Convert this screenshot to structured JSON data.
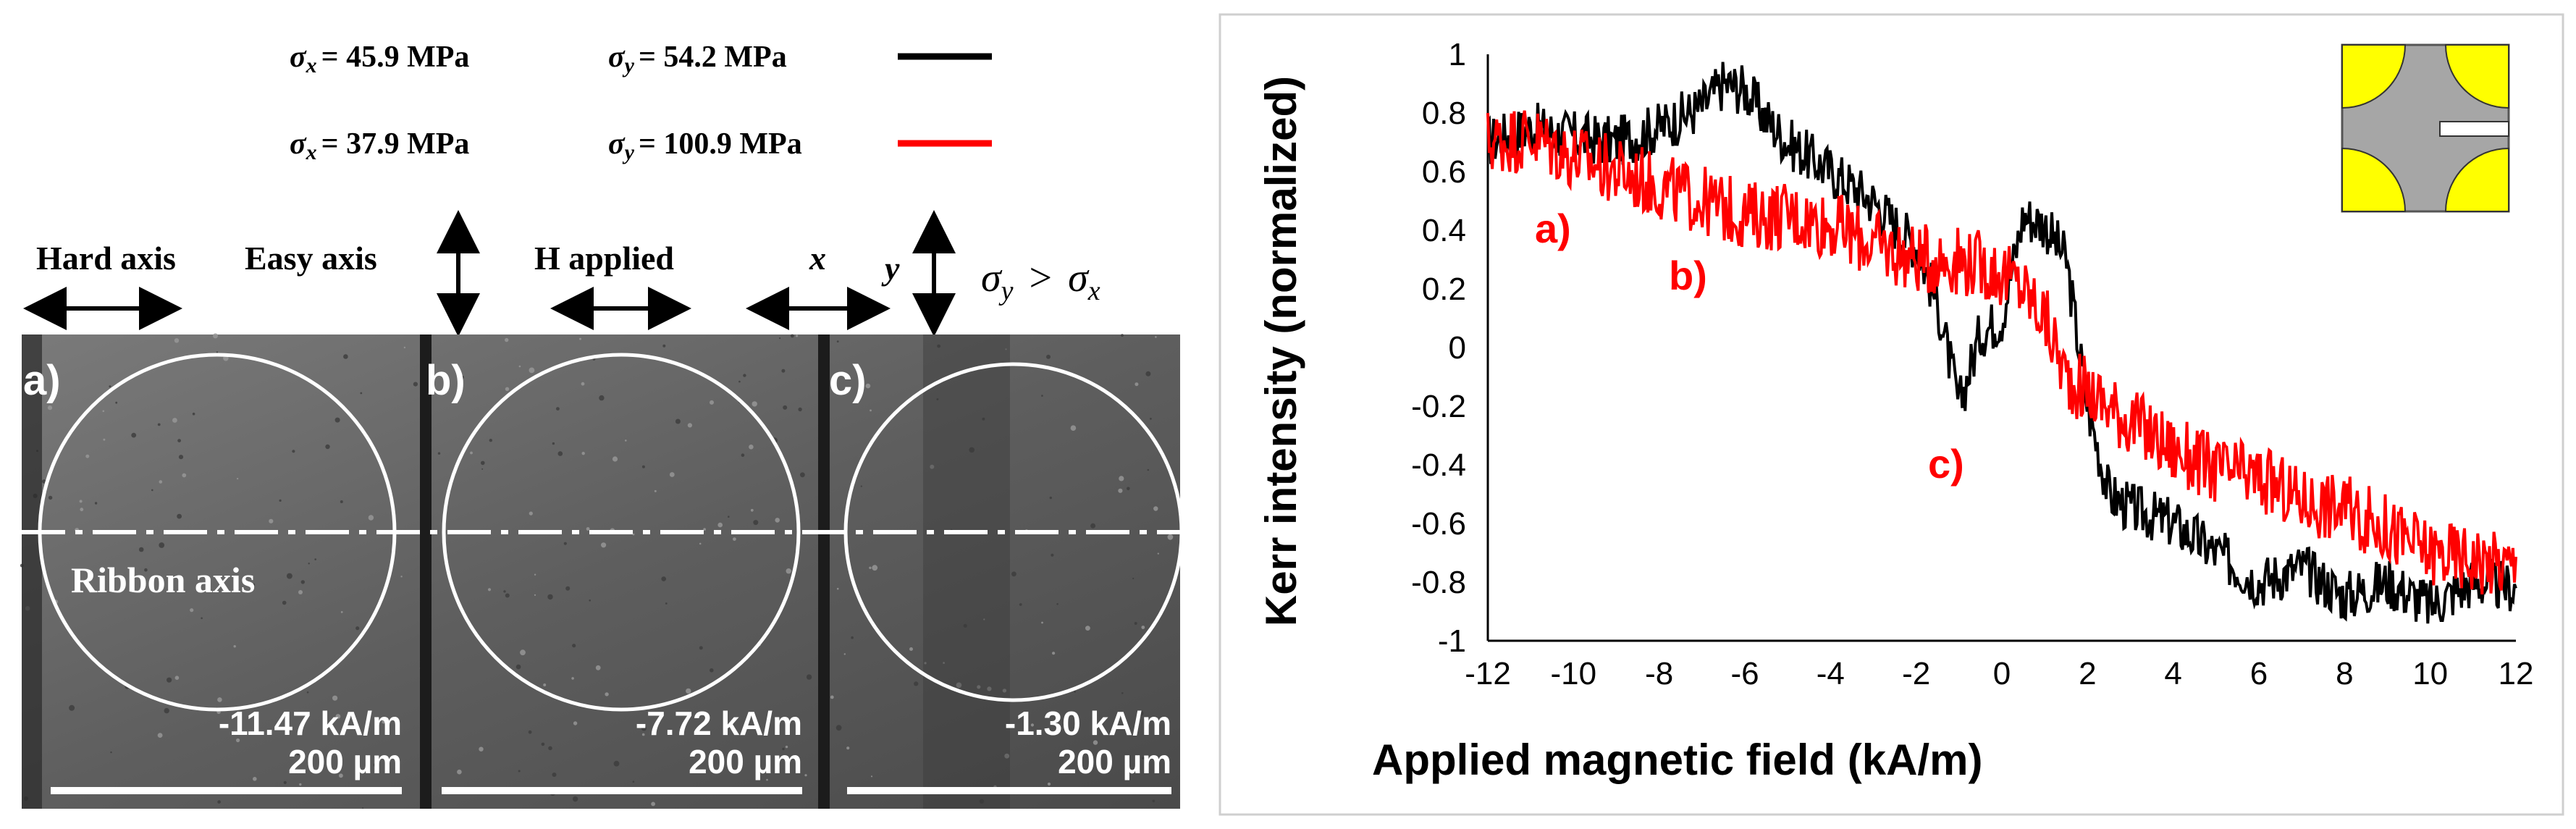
{
  "legend": {
    "entries": [
      {
        "sx_label": "σ",
        "sx_sub": "x",
        "sx_val": "= 45.9 MPa",
        "sy_label": "σ",
        "sy_sub": "y",
        "sy_val": "= 54.2 MPa",
        "color": "#000000"
      },
      {
        "sx_label": "σ",
        "sx_sub": "x",
        "sx_val": "= 37.9 MPa",
        "sy_label": "σ",
        "sy_sub": "y",
        "sy_val": "= 100.9 MPa",
        "color": "#ff0000"
      }
    ]
  },
  "axes_labels": {
    "hard_axis": "Hard axis",
    "easy_axis": "Easy axis",
    "h_applied": "H applied",
    "x": "x",
    "y": "y",
    "relation_sigma": "σ",
    "relation_y": "y",
    "relation_op": ">",
    "relation_x": "x"
  },
  "panels": [
    {
      "letter": "a)",
      "field": "-11.47 kA/m",
      "scale": "200 µm",
      "axis_label": "Ribbon axis"
    },
    {
      "letter": "b)",
      "field": "-7.72 kA/m",
      "scale": "200 µm",
      "axis_label": ""
    },
    {
      "letter": "c)",
      "field": "-1.30 kA/m",
      "scale": "200 µm",
      "axis_label": ""
    }
  ],
  "annotations": [
    "a)",
    "b)",
    "c)"
  ],
  "colors": {
    "black_series": "#000000",
    "red_series": "#ff0000",
    "inset_gray": "#a6a6a6",
    "inset_yellow": "#ffff00"
  },
  "chart_data": {
    "type": "line",
    "xlabel": "Applied  magnetic field (kA/m)",
    "ylabel": "Kerr intensity (normalized)",
    "xlim": [
      -12,
      12
    ],
    "ylim": [
      -1,
      1
    ],
    "xticks": [
      -12,
      -10,
      -8,
      -6,
      -4,
      -2,
      0,
      2,
      4,
      6,
      8,
      10,
      12
    ],
    "yticks": [
      1,
      0.8,
      0.6,
      0.4,
      0.2,
      0,
      -0.2,
      -0.4,
      -0.6,
      -0.8,
      -1
    ],
    "grid": false,
    "noise_note": "",
    "series": [
      {
        "color": "#000000",
        "legend": "σx = 45.9 MPa σy = 54.2 MPa",
        "x": [
          -12,
          -11,
          -10,
          -9,
          -8,
          -7,
          -6.5,
          -6,
          -5.5,
          -5,
          -4,
          -3,
          -2.5,
          -2,
          -1.5,
          -1,
          -0.5,
          0,
          0.5,
          1,
          1.5,
          2,
          2.5,
          3,
          4,
          5,
          6,
          7,
          8,
          9,
          10,
          11,
          12
        ],
        "y": [
          0.7,
          0.75,
          0.72,
          0.7,
          0.75,
          0.82,
          0.9,
          0.88,
          0.78,
          0.7,
          0.6,
          0.5,
          0.42,
          0.35,
          0.15,
          -0.2,
          0.05,
          0.1,
          0.45,
          0.42,
          0.3,
          -0.2,
          -0.5,
          -0.55,
          -0.6,
          -0.7,
          -0.8,
          -0.75,
          -0.85,
          -0.8,
          -0.88,
          -0.8,
          -0.82
        ]
      },
      {
        "color": "#ff0000",
        "legend": "σx = 37.9 MPa σy = 100.9 MPa",
        "x": [
          -12,
          -11,
          -10,
          -9,
          -8,
          -7,
          -6,
          -5,
          -4,
          -3,
          -2,
          -1,
          -0.5,
          0,
          0.5,
          1,
          1.5,
          2,
          2.5,
          3,
          4,
          5,
          6,
          7,
          8,
          9,
          10,
          11,
          12
        ],
        "y": [
          0.7,
          0.72,
          0.65,
          0.6,
          0.55,
          0.5,
          0.45,
          0.45,
          0.42,
          0.35,
          0.3,
          0.3,
          0.28,
          0.25,
          0.2,
          0.1,
          -0.1,
          -0.15,
          -0.2,
          -0.25,
          -0.35,
          -0.42,
          -0.45,
          -0.52,
          -0.55,
          -0.62,
          -0.7,
          -0.72,
          -0.75
        ]
      }
    ]
  }
}
